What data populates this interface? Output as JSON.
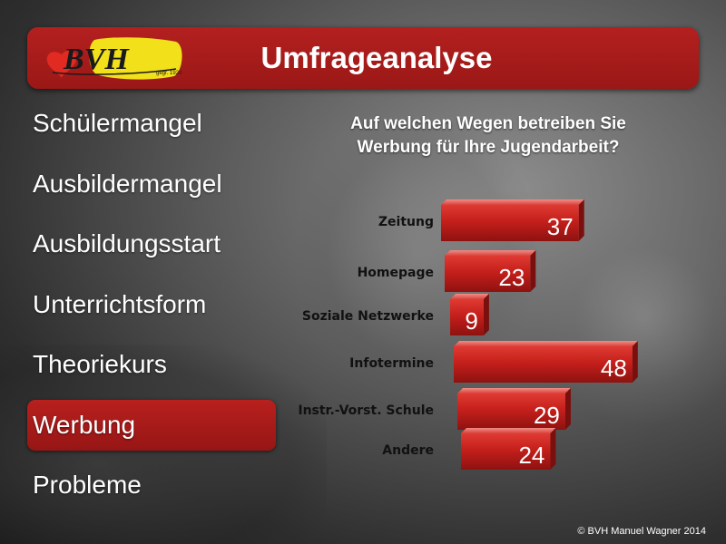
{
  "header": {
    "logo_text": "BVH",
    "logo_subtext": "gegr. 1920",
    "title": "Umfrageanalyse"
  },
  "menu": {
    "items": [
      {
        "label": "Schülermangel",
        "active": false
      },
      {
        "label": "Ausbildermangel",
        "active": false
      },
      {
        "label": "Ausbildungsstart",
        "active": false
      },
      {
        "label": "Unterrichtsform",
        "active": false
      },
      {
        "label": "Theoriekurs",
        "active": false
      },
      {
        "label": "Werbung",
        "active": true
      },
      {
        "label": "Probleme",
        "active": false
      }
    ]
  },
  "chart_data": {
    "type": "bar",
    "orientation": "horizontal",
    "title": [
      "Auf welchen Wegen betreiben Sie",
      "Werbung für Ihre Jugendarbeit?"
    ],
    "categories": [
      "Zeitung",
      "Homepage",
      "Soziale Netzwerke",
      "Infotermine",
      "Instr.-Vorst. Schule",
      "Andere"
    ],
    "values": [
      37,
      23,
      9,
      48,
      29,
      24
    ],
    "bar_color": "#c8201c",
    "data_labels": true,
    "grid": false
  },
  "footer": {
    "copyright": "© BVH Manuel Wagner 2014"
  }
}
